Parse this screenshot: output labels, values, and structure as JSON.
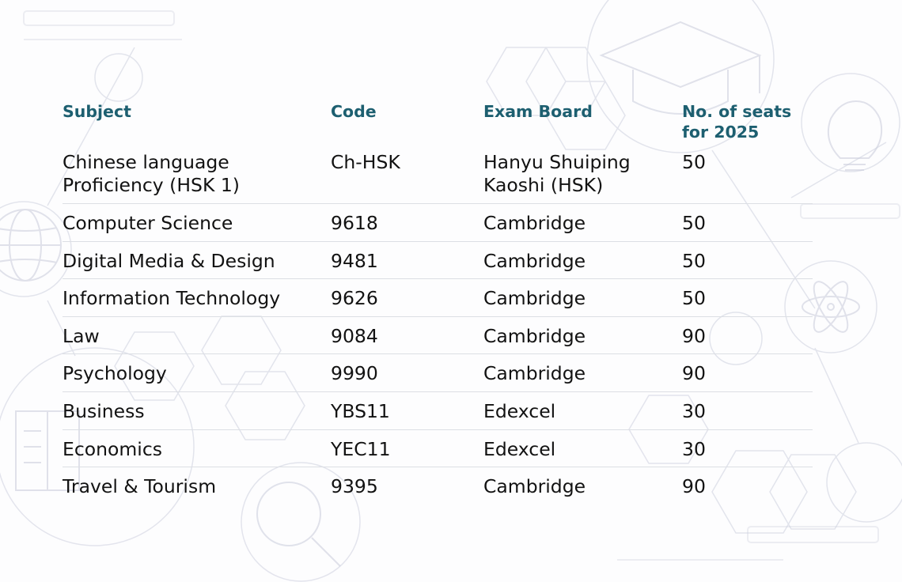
{
  "table": {
    "headers": [
      "Subject",
      "Code",
      "Exam Board",
      "No. of seats for 2025"
    ],
    "rows": [
      [
        "Chinese language\nProficiency (HSK 1)",
        "Ch-HSK",
        "Hanyu Shuiping\nKaoshi (HSK)",
        "50"
      ],
      [
        "Computer Science",
        "9618",
        "Cambridge",
        "50"
      ],
      [
        "Digital Media & Design",
        "9481",
        "Cambridge",
        "50"
      ],
      [
        "Information Technology",
        "9626",
        "Cambridge",
        "50"
      ],
      [
        "Law",
        "9084",
        "Cambridge",
        "90"
      ],
      [
        "Psychology",
        "9990",
        "Cambridge",
        "90"
      ],
      [
        "Business",
        "YBS11",
        "Edexcel",
        "30"
      ],
      [
        "Economics",
        "YEC11",
        "Edexcel",
        "30"
      ],
      [
        "Travel & Tourism",
        "9395",
        "Cambridge",
        "90"
      ]
    ]
  },
  "colors": {
    "header_text": "#1d5f70",
    "body_text": "#121212",
    "row_divider": "#dcdfe4",
    "background": "#fdfdfe",
    "decoration": "#c9ccdc"
  },
  "background_icons": [
    "graduation-cap-icon",
    "lightbulb-icon",
    "globe-icon",
    "atom-icon",
    "magnifier-icon",
    "book-icon",
    "hexagon-pattern"
  ]
}
